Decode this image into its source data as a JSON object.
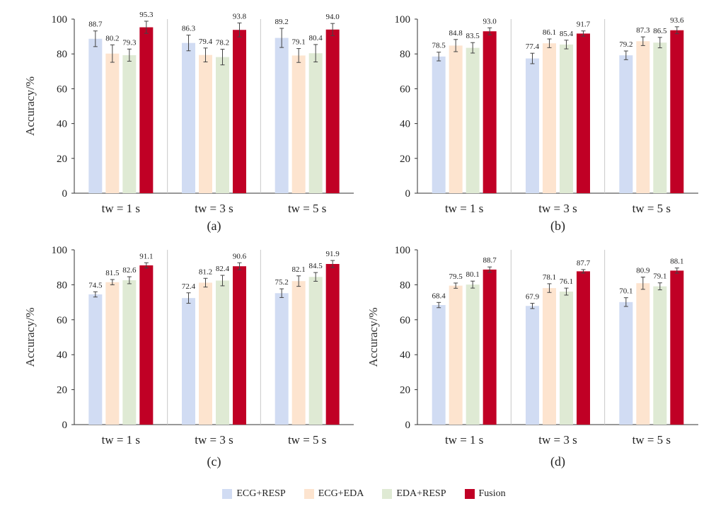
{
  "legend": {
    "series": [
      {
        "name": "ECG+RESP",
        "color": "#d1dcf3"
      },
      {
        "name": "ECG+EDA",
        "color": "#fde4cf"
      },
      {
        "name": "EDA+RESP",
        "color": "#dfead4"
      },
      {
        "name": "Fusion",
        "color": "#c00025"
      }
    ]
  },
  "chart_data": [
    {
      "type": "bar",
      "panel": "(a)",
      "ylabel": "Accuracy/%",
      "ylim": [
        0,
        100
      ],
      "yticks": [
        "0",
        "20",
        "40",
        "60",
        "80",
        "100"
      ],
      "categories": [
        "tw = 1 s",
        "tw = 3 s",
        "tw = 5 s"
      ],
      "series": [
        {
          "name": "ECG+RESP",
          "values": [
            88.7,
            86.3,
            89.2
          ],
          "errors": [
            4.5,
            4.5,
            5.5
          ]
        },
        {
          "name": "ECG+EDA",
          "values": [
            80.2,
            79.4,
            79.1
          ],
          "errors": [
            5.0,
            4.0,
            4.0
          ]
        },
        {
          "name": "EDA+RESP",
          "values": [
            79.3,
            78.2,
            80.4
          ],
          "errors": [
            3.5,
            4.5,
            5.0
          ]
        },
        {
          "name": "Fusion",
          "values": [
            95.3,
            93.8,
            94.0
          ],
          "errors": [
            3.5,
            4.0,
            3.5
          ]
        }
      ],
      "data_labels": [
        [
          "88.7",
          "86.3",
          "89.2"
        ],
        [
          "80.2",
          "79.4",
          "79.1"
        ],
        [
          "79.3",
          "78.2",
          "80.4"
        ],
        [
          "95.3",
          "93.8",
          "94.0"
        ]
      ]
    },
    {
      "type": "bar",
      "panel": "(b)",
      "ylabel": "",
      "ylim": [
        0,
        100
      ],
      "yticks": [
        "0",
        "20",
        "40",
        "60",
        "80",
        "100"
      ],
      "categories": [
        "tw = 1 s",
        "tw = 3 s",
        "tw = 5 s"
      ],
      "series": [
        {
          "name": "ECG+RESP",
          "values": [
            78.5,
            77.4,
            79.2
          ],
          "errors": [
            2.5,
            3.0,
            2.5
          ]
        },
        {
          "name": "ECG+EDA",
          "values": [
            84.8,
            86.1,
            87.3
          ],
          "errors": [
            3.5,
            2.5,
            2.5
          ]
        },
        {
          "name": "EDA+RESP",
          "values": [
            83.5,
            85.4,
            86.5
          ],
          "errors": [
            3.0,
            2.5,
            3.0
          ]
        },
        {
          "name": "Fusion",
          "values": [
            93.0,
            91.7,
            93.6
          ],
          "errors": [
            2.0,
            1.5,
            2.0
          ]
        }
      ],
      "data_labels": [
        [
          "78.5",
          "77.4",
          "79.2"
        ],
        [
          "84.8",
          "86.1",
          "87.3"
        ],
        [
          "83.5",
          "85.4",
          "86.5"
        ],
        [
          "93.0",
          "91.7",
          "93.6"
        ]
      ]
    },
    {
      "type": "bar",
      "panel": "(c)",
      "ylabel": "Accuracy/%",
      "ylim": [
        0,
        100
      ],
      "yticks": [
        "0",
        "20",
        "40",
        "60",
        "80",
        "100"
      ],
      "categories": [
        "tw = 1 s",
        "tw = 3 s",
        "tw = 5 s"
      ],
      "series": [
        {
          "name": "ECG+RESP",
          "values": [
            74.5,
            72.4,
            75.2
          ],
          "errors": [
            1.5,
            3.0,
            2.5
          ]
        },
        {
          "name": "ECG+EDA",
          "values": [
            81.5,
            81.2,
            82.1
          ],
          "errors": [
            1.5,
            2.5,
            3.0
          ]
        },
        {
          "name": "EDA+RESP",
          "values": [
            82.6,
            82.4,
            84.5
          ],
          "errors": [
            2.0,
            3.0,
            2.5
          ]
        },
        {
          "name": "Fusion",
          "values": [
            91.1,
            90.6,
            91.9
          ],
          "errors": [
            1.5,
            2.0,
            2.0
          ]
        }
      ],
      "data_labels": [
        [
          "74.5",
          "72.4",
          "75.2"
        ],
        [
          "81.5",
          "81.2",
          "82.1"
        ],
        [
          "82.6",
          "82.4",
          "84.5"
        ],
        [
          "91.1",
          "90.6",
          "91.9"
        ]
      ]
    },
    {
      "type": "bar",
      "panel": "(d)",
      "ylabel": "Accuracy/%",
      "ylim": [
        0,
        100
      ],
      "yticks": [
        "0",
        "20",
        "40",
        "60",
        "80",
        "100"
      ],
      "categories": [
        "tw = 1 s",
        "tw = 3 s",
        "tw = 5 s"
      ],
      "series": [
        {
          "name": "ECG+RESP",
          "values": [
            68.4,
            67.9,
            70.1
          ],
          "errors": [
            1.5,
            1.5,
            2.5
          ]
        },
        {
          "name": "ECG+EDA",
          "values": [
            79.5,
            78.1,
            80.9
          ],
          "errors": [
            1.5,
            2.5,
            3.5
          ]
        },
        {
          "name": "EDA+RESP",
          "values": [
            80.1,
            76.1,
            79.1
          ],
          "errors": [
            2.0,
            2.0,
            2.0
          ]
        },
        {
          "name": "Fusion",
          "values": [
            88.7,
            87.7,
            88.1
          ],
          "errors": [
            1.5,
            1.0,
            1.5
          ]
        }
      ],
      "data_labels": [
        [
          "68.4",
          "67.9",
          "70.1"
        ],
        [
          "79.5",
          "78.1",
          "80.9"
        ],
        [
          "80.1",
          "76.1",
          "79.1"
        ],
        [
          "88.7",
          "87.7",
          "88.1"
        ]
      ]
    }
  ]
}
